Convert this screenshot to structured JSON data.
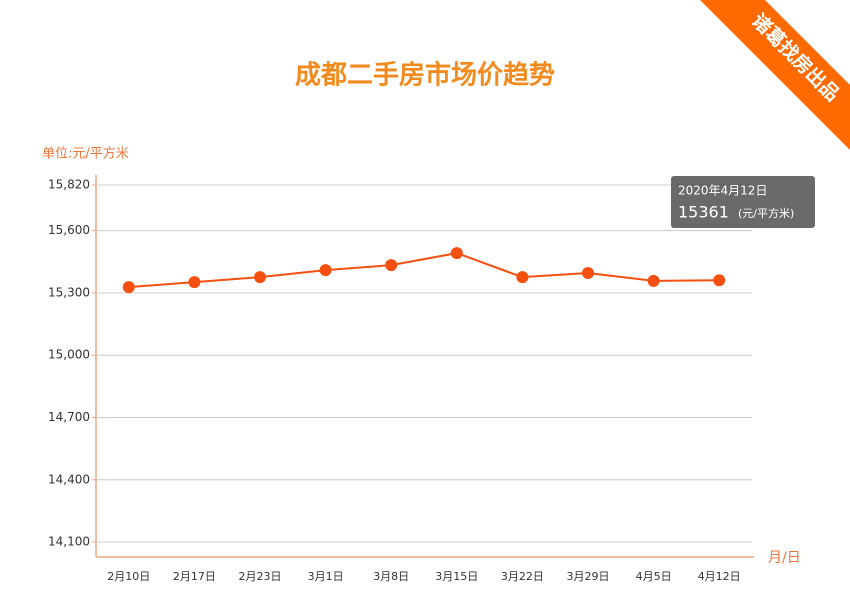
{
  "chart_data": {
    "type": "line",
    "title": "成都二手房市场价趋势",
    "y_label": "单位:元/平方米",
    "x_label": "月/日",
    "badge": "诸葛找房出品",
    "categories": [
      "2月10日",
      "2月17日",
      "2月23日",
      "3月1日",
      "3月8日",
      "3月15日",
      "3月22日",
      "3月29日",
      "4月5日",
      "4月12日"
    ],
    "series": [
      {
        "name": "成都二手房市场价",
        "color": "#f5500f",
        "values": [
          15328,
          15352,
          15376,
          15410,
          15434,
          15492,
          15376,
          15396,
          15358,
          15361
        ]
      }
    ],
    "ylim": [
      14028,
      15820
    ],
    "yticks": [
      {
        "value": 14100,
        "label": "14,100"
      },
      {
        "value": 14400,
        "label": "14,400"
      },
      {
        "value": 14700,
        "label": "14,700"
      },
      {
        "value": 15000,
        "label": "15,000"
      },
      {
        "value": 15300,
        "label": "15,300"
      },
      {
        "value": 15600,
        "label": "15,600"
      },
      {
        "value": 15820,
        "label": "15,820"
      }
    ],
    "grid": true,
    "tooltip": {
      "title": "2020年4月12日",
      "unit": "(元/平方米)"
    }
  }
}
